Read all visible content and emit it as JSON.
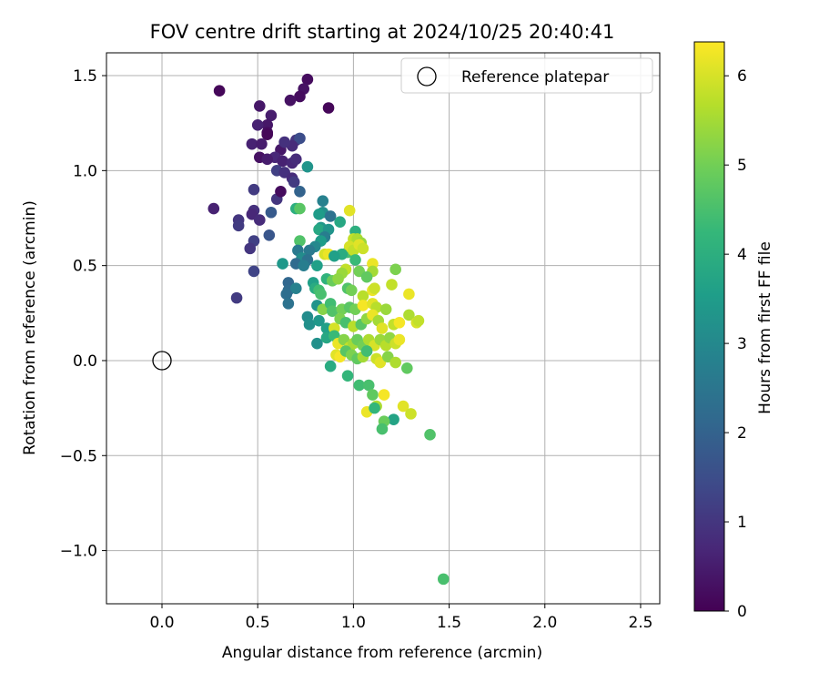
{
  "chart_data": {
    "type": "scatter",
    "title": "FOV centre drift starting at 2024/10/25 20:40:41",
    "xlabel": "Angular distance from reference (arcmin)",
    "ylabel": "Rotation from reference (arcmin)",
    "xlim": [
      -0.29,
      2.6
    ],
    "ylim": [
      -1.28,
      1.62
    ],
    "xticks": [
      "0.0",
      "0.5",
      "1.0",
      "1.5",
      "2.0",
      "2.5"
    ],
    "yticks": [
      "−1.0",
      "−0.5",
      "0.0",
      "0.5",
      "1.0",
      "1.5"
    ],
    "grid": true,
    "legend": {
      "position": "top-right",
      "entries": [
        "Reference platepar"
      ]
    },
    "reference_point": {
      "x": 0.0,
      "y": 0.0
    },
    "colorbar": {
      "label": "Hours from first FF file",
      "range": [
        0,
        6.38
      ],
      "ticks": [
        "0",
        "1",
        "2",
        "3",
        "4",
        "5",
        "6"
      ],
      "colormap": "viridis",
      "stops": [
        "#440154",
        "#482878",
        "#3e4a89",
        "#31688e",
        "#26828e",
        "#1f9e89",
        "#35b779",
        "#6ece58",
        "#b5de2b",
        "#fde725"
      ]
    },
    "points": [
      [
        0.3,
        1.42,
        0.1
      ],
      [
        0.76,
        1.48,
        0.2
      ],
      [
        0.74,
        1.43,
        0.3
      ],
      [
        0.72,
        1.39,
        0.2
      ],
      [
        0.67,
        1.37,
        0.3
      ],
      [
        0.87,
        1.33,
        0.1
      ],
      [
        0.51,
        1.34,
        0.4
      ],
      [
        0.57,
        1.29,
        0.5
      ],
      [
        0.55,
        1.24,
        0.4
      ],
      [
        0.5,
        1.24,
        0.6
      ],
      [
        0.55,
        1.2,
        0.2
      ],
      [
        0.55,
        1.19,
        0.1
      ],
      [
        0.47,
        1.14,
        0.6
      ],
      [
        0.52,
        1.14,
        0.5
      ],
      [
        0.62,
        1.11,
        0.4
      ],
      [
        0.7,
        1.16,
        1.0
      ],
      [
        0.72,
        1.17,
        1.5
      ],
      [
        0.68,
        1.13,
        0.8
      ],
      [
        0.64,
        1.15,
        0.9
      ],
      [
        0.59,
        1.07,
        0.7
      ],
      [
        0.51,
        1.07,
        0.3
      ],
      [
        0.55,
        1.06,
        0.5
      ],
      [
        0.63,
        1.05,
        0.6
      ],
      [
        0.68,
        1.04,
        0.7
      ],
      [
        0.7,
        1.06,
        0.8
      ],
      [
        0.6,
        1.0,
        1.2
      ],
      [
        0.64,
        0.99,
        0.9
      ],
      [
        0.76,
        1.02,
        3.3
      ],
      [
        0.68,
        0.96,
        0.8
      ],
      [
        0.69,
        0.94,
        1.1
      ],
      [
        0.48,
        0.9,
        1.1
      ],
      [
        0.6,
        0.85,
        1.0
      ],
      [
        0.62,
        0.89,
        0.2
      ],
      [
        0.72,
        0.89,
        2.0
      ],
      [
        0.27,
        0.8,
        0.6
      ],
      [
        0.4,
        0.74,
        1.0
      ],
      [
        0.4,
        0.71,
        1.1
      ],
      [
        0.48,
        0.79,
        0.9
      ],
      [
        0.47,
        0.77,
        0.7
      ],
      [
        0.51,
        0.74,
        0.8
      ],
      [
        0.57,
        0.78,
        1.8
      ],
      [
        0.7,
        0.8,
        4.0
      ],
      [
        0.72,
        0.8,
        4.7
      ],
      [
        0.84,
        0.84,
        2.8
      ],
      [
        0.84,
        0.78,
        3.2
      ],
      [
        0.88,
        0.76,
        2.4
      ],
      [
        0.82,
        0.77,
        3.5
      ],
      [
        0.93,
        0.73,
        3.8
      ],
      [
        0.48,
        0.63,
        1.2
      ],
      [
        0.46,
        0.59,
        1.0
      ],
      [
        0.56,
        0.66,
        1.7
      ],
      [
        0.48,
        0.47,
        1.3
      ],
      [
        0.39,
        0.33,
        1.1
      ],
      [
        0.72,
        0.63,
        4.6
      ],
      [
        0.83,
        0.7,
        3.4
      ],
      [
        0.82,
        0.69,
        3.8
      ],
      [
        0.87,
        0.69,
        3.3
      ],
      [
        0.85,
        0.65,
        2.7
      ],
      [
        0.83,
        0.63,
        3.5
      ],
      [
        0.8,
        0.6,
        3.0
      ],
      [
        0.77,
        0.58,
        2.6
      ],
      [
        0.71,
        0.58,
        2.6
      ],
      [
        0.73,
        0.54,
        3.1
      ],
      [
        0.76,
        0.53,
        2.4
      ],
      [
        0.7,
        0.51,
        2.2
      ],
      [
        0.63,
        0.51,
        3.4
      ],
      [
        0.74,
        0.5,
        2.7
      ],
      [
        0.81,
        0.5,
        3.6
      ],
      [
        0.85,
        0.56,
        6.0
      ],
      [
        0.87,
        0.56,
        6.2
      ],
      [
        0.98,
        0.79,
        6.1
      ],
      [
        1.01,
        0.68,
        4.0
      ],
      [
        1.0,
        0.64,
        5.8
      ],
      [
        1.02,
        0.64,
        5.6
      ],
      [
        1.04,
        0.62,
        5.4
      ],
      [
        0.97,
        0.57,
        4.5
      ],
      [
        0.98,
        0.6,
        6.0
      ],
      [
        1.0,
        0.58,
        5.8
      ],
      [
        1.03,
        0.61,
        6.1
      ],
      [
        1.05,
        0.59,
        5.9
      ],
      [
        0.94,
        0.56,
        3.9
      ],
      [
        0.9,
        0.55,
        3.6
      ],
      [
        1.01,
        0.53,
        4.3
      ],
      [
        1.1,
        0.51,
        6.2
      ],
      [
        1.1,
        0.47,
        5.5
      ],
      [
        1.03,
        0.47,
        5.0
      ],
      [
        0.96,
        0.48,
        5.8
      ],
      [
        0.94,
        0.46,
        5.4
      ],
      [
        1.07,
        0.44,
        4.8
      ],
      [
        1.22,
        0.48,
        5.1
      ],
      [
        0.66,
        0.41,
        2.1
      ],
      [
        0.66,
        0.37,
        2.2
      ],
      [
        0.7,
        0.38,
        2.8
      ],
      [
        0.65,
        0.35,
        2.3
      ],
      [
        0.79,
        0.41,
        3.6
      ],
      [
        0.8,
        0.38,
        3.9
      ],
      [
        0.82,
        0.37,
        4.4
      ],
      [
        0.83,
        0.35,
        4.5
      ],
      [
        0.86,
        0.43,
        4.1
      ],
      [
        0.89,
        0.42,
        4.9
      ],
      [
        0.92,
        0.43,
        5.3
      ],
      [
        0.97,
        0.38,
        4.6
      ],
      [
        0.99,
        0.37,
        5.0
      ],
      [
        1.05,
        0.34,
        5.7
      ],
      [
        1.1,
        0.37,
        6.2
      ],
      [
        1.11,
        0.38,
        5.9
      ],
      [
        1.2,
        0.4,
        5.8
      ],
      [
        1.29,
        0.35,
        6.2
      ],
      [
        0.66,
        0.3,
        2.4
      ],
      [
        0.81,
        0.29,
        3.3
      ],
      [
        0.84,
        0.27,
        5.2
      ],
      [
        0.88,
        0.3,
        4.4
      ],
      [
        0.89,
        0.26,
        4.6
      ],
      [
        0.94,
        0.27,
        5.0
      ],
      [
        0.98,
        0.28,
        4.7
      ],
      [
        1.01,
        0.27,
        5.0
      ],
      [
        1.05,
        0.29,
        6.3
      ],
      [
        1.1,
        0.3,
        6.1
      ],
      [
        1.12,
        0.28,
        5.7
      ],
      [
        1.17,
        0.27,
        5.4
      ],
      [
        0.76,
        0.23,
        3.1
      ],
      [
        0.77,
        0.19,
        3.2
      ],
      [
        0.82,
        0.21,
        3.4
      ],
      [
        0.86,
        0.17,
        3.6
      ],
      [
        0.9,
        0.17,
        6.0
      ],
      [
        0.93,
        0.22,
        5.1
      ],
      [
        0.96,
        0.2,
        4.5
      ],
      [
        1.0,
        0.18,
        5.7
      ],
      [
        1.04,
        0.19,
        4.7
      ],
      [
        1.07,
        0.22,
        5.3
      ],
      [
        1.1,
        0.24,
        6.2
      ],
      [
        1.13,
        0.21,
        5.5
      ],
      [
        1.15,
        0.17,
        6.1
      ],
      [
        1.21,
        0.19,
        5.8
      ],
      [
        1.24,
        0.2,
        6.3
      ],
      [
        1.29,
        0.24,
        5.6
      ],
      [
        1.33,
        0.2,
        6.0
      ],
      [
        1.34,
        0.21,
        5.8
      ],
      [
        0.81,
        0.09,
        3.2
      ],
      [
        0.86,
        0.12,
        3.8
      ],
      [
        0.9,
        0.13,
        4.3
      ],
      [
        0.92,
        0.09,
        6.2
      ],
      [
        0.95,
        0.11,
        5.2
      ],
      [
        0.98,
        0.07,
        5.8
      ],
      [
        1.0,
        0.09,
        5.5
      ],
      [
        1.02,
        0.11,
        4.9
      ],
      [
        1.05,
        0.08,
        5.0
      ],
      [
        1.08,
        0.11,
        5.6
      ],
      [
        1.11,
        0.08,
        6.0
      ],
      [
        1.14,
        0.11,
        5.4
      ],
      [
        1.17,
        0.08,
        5.7
      ],
      [
        1.19,
        0.12,
        5.3
      ],
      [
        1.22,
        0.09,
        5.9
      ],
      [
        1.24,
        0.11,
        6.2
      ],
      [
        0.88,
        -0.03,
        3.9
      ],
      [
        0.91,
        0.03,
        6.1
      ],
      [
        0.93,
        0.02,
        6.3
      ],
      [
        0.96,
        0.05,
        4.7
      ],
      [
        0.99,
        0.03,
        5.1
      ],
      [
        1.02,
        0.01,
        4.8
      ],
      [
        1.05,
        0.02,
        5.5
      ],
      [
        1.07,
        0.05,
        4.4
      ],
      [
        1.12,
        0.01,
        5.9
      ],
      [
        1.14,
        -0.01,
        6.1
      ],
      [
        1.18,
        0.02,
        5.2
      ],
      [
        1.22,
        -0.01,
        5.6
      ],
      [
        1.28,
        -0.04,
        4.8
      ],
      [
        0.97,
        -0.08,
        4.2
      ],
      [
        1.03,
        -0.13,
        4.4
      ],
      [
        1.08,
        -0.13,
        4.5
      ],
      [
        1.1,
        -0.18,
        4.8
      ],
      [
        1.16,
        -0.18,
        6.3
      ],
      [
        1.12,
        -0.24,
        5.6
      ],
      [
        1.07,
        -0.27,
        6.2
      ],
      [
        1.11,
        -0.25,
        4.2
      ],
      [
        1.21,
        -0.31,
        3.7
      ],
      [
        1.26,
        -0.24,
        6.1
      ],
      [
        1.3,
        -0.28,
        5.9
      ],
      [
        1.16,
        -0.32,
        4.9
      ],
      [
        1.15,
        -0.36,
        4.5
      ],
      [
        1.4,
        -0.39,
        4.6
      ],
      [
        1.47,
        -1.15,
        4.5
      ]
    ]
  }
}
